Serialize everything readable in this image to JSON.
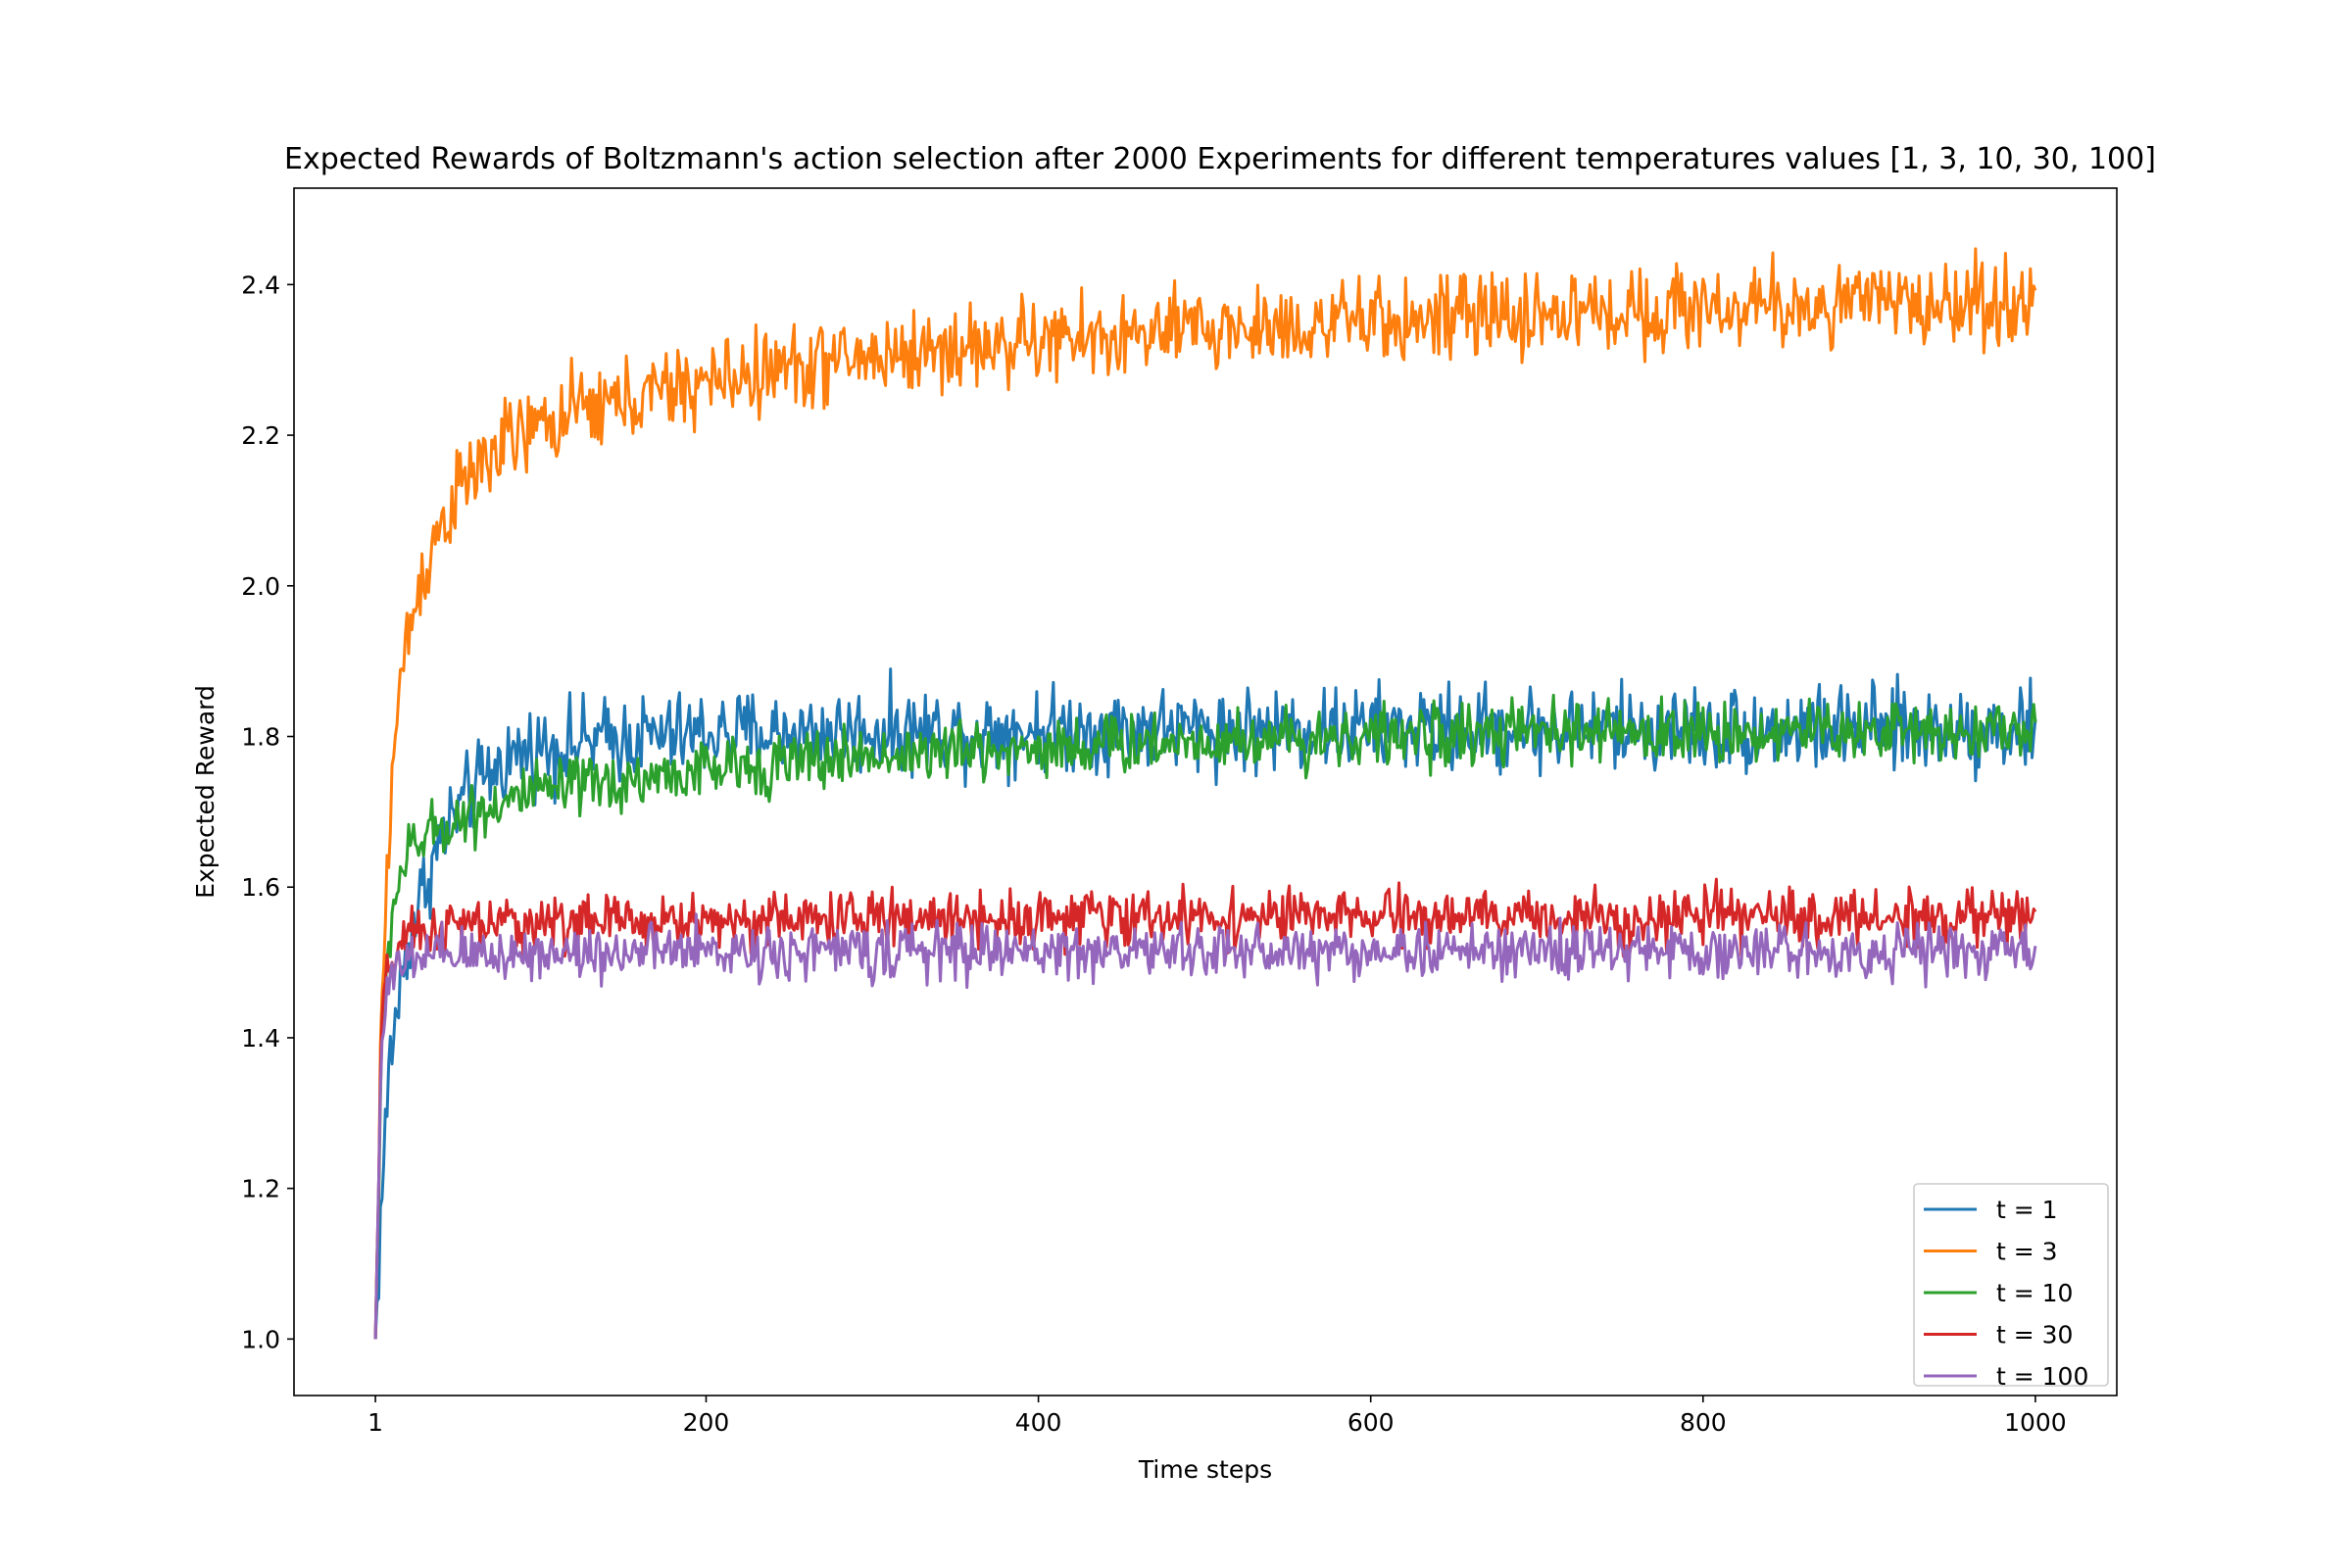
{
  "chart_data": {
    "type": "line",
    "title": "Expected Rewards of Boltzmann's action selection after 2000 Experiments for different temperatures values [1, 3, 10, 30, 100]",
    "xlabel": "Time steps",
    "ylabel": "Expected Reward",
    "xlim": [
      -48,
      1049
    ],
    "ylim": [
      0.925,
      2.528
    ],
    "xticks": [
      1,
      200,
      400,
      600,
      800,
      1000
    ],
    "xtick_labels": [
      "1",
      "200",
      "400",
      "600",
      "800",
      "1000"
    ],
    "yticks": [
      1.0,
      1.2,
      1.4,
      1.6,
      1.8,
      2.0,
      2.2,
      2.4
    ],
    "ytick_labels": [
      "1.0",
      "1.2",
      "1.4",
      "1.6",
      "1.8",
      "2.0",
      "2.2",
      "2.4"
    ],
    "grid": false,
    "legend_position": "lower-right",
    "series": [
      {
        "name": "t = 1",
        "color": "#1f77b4",
        "x": [
          1,
          5,
          10,
          15,
          20,
          30,
          40,
          50,
          60,
          70,
          80,
          90,
          100,
          120,
          140,
          160,
          180,
          200,
          250,
          300,
          350,
          400,
          450,
          500,
          550,
          600,
          650,
          700,
          750,
          800,
          850,
          900,
          950,
          1000
        ],
        "values": [
          1.0,
          1.2,
          1.38,
          1.45,
          1.52,
          1.6,
          1.66,
          1.7,
          1.73,
          1.75,
          1.77,
          1.78,
          1.785,
          1.79,
          1.795,
          1.8,
          1.8,
          1.805,
          1.805,
          1.808,
          1.808,
          1.81,
          1.81,
          1.81,
          1.81,
          1.81,
          1.81,
          1.81,
          1.81,
          1.81,
          1.81,
          1.81,
          1.81,
          1.81
        ],
        "noise": 0.028
      },
      {
        "name": "t = 3",
        "color": "#ff7f0e",
        "x": [
          1,
          5,
          10,
          15,
          20,
          30,
          40,
          50,
          60,
          70,
          80,
          100,
          120,
          140,
          160,
          180,
          200,
          250,
          300,
          350,
          400,
          450,
          500,
          550,
          600,
          650,
          700,
          750,
          800,
          850,
          900,
          950,
          1000
        ],
        "values": [
          1.0,
          1.45,
          1.72,
          1.85,
          1.93,
          2.02,
          2.08,
          2.12,
          2.15,
          2.17,
          2.19,
          2.21,
          2.23,
          2.24,
          2.25,
          2.26,
          2.27,
          2.29,
          2.305,
          2.315,
          2.325,
          2.33,
          2.34,
          2.345,
          2.35,
          2.355,
          2.36,
          2.365,
          2.37,
          2.37,
          2.375,
          2.375,
          2.38
        ],
        "noise": 0.028
      },
      {
        "name": "t = 10",
        "color": "#2ca02c",
        "x": [
          1,
          5,
          10,
          15,
          20,
          30,
          40,
          60,
          80,
          100,
          150,
          200,
          250,
          300,
          350,
          400,
          450,
          500,
          550,
          600,
          650,
          700,
          750,
          800,
          850,
          900,
          950,
          1000
        ],
        "values": [
          1.0,
          1.4,
          1.55,
          1.61,
          1.64,
          1.665,
          1.68,
          1.7,
          1.715,
          1.725,
          1.74,
          1.755,
          1.765,
          1.775,
          1.78,
          1.785,
          1.79,
          1.795,
          1.798,
          1.8,
          1.802,
          1.805,
          1.805,
          1.805,
          1.807,
          1.808,
          1.808,
          1.81
        ],
        "noise": 0.02
      },
      {
        "name": "t = 30",
        "color": "#d62728",
        "x": [
          1,
          5,
          10,
          15,
          20,
          30,
          50,
          100,
          200,
          300,
          400,
          500,
          600,
          700,
          800,
          900,
          1000
        ],
        "values": [
          1.0,
          1.43,
          1.5,
          1.52,
          1.53,
          1.54,
          1.548,
          1.553,
          1.556,
          1.558,
          1.56,
          1.56,
          1.56,
          1.56,
          1.56,
          1.56,
          1.56
        ],
        "noise": 0.018
      },
      {
        "name": "t = 100",
        "color": "#9467bd",
        "x": [
          1,
          5,
          10,
          15,
          20,
          30,
          50,
          100,
          200,
          300,
          400,
          500,
          600,
          700,
          800,
          900,
          1000
        ],
        "values": [
          1.0,
          1.42,
          1.47,
          1.49,
          1.5,
          1.505,
          1.51,
          1.513,
          1.515,
          1.515,
          1.515,
          1.515,
          1.515,
          1.515,
          1.515,
          1.515,
          1.515
        ],
        "noise": 0.018
      }
    ]
  }
}
